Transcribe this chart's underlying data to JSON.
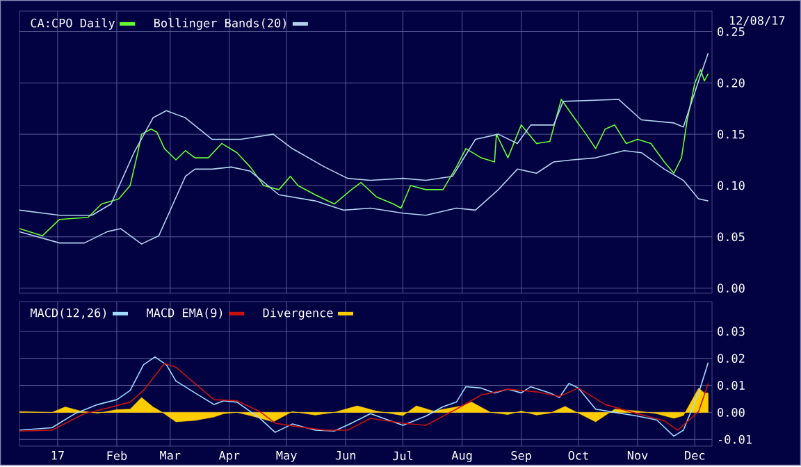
{
  "chart_data": [
    {
      "type": "line",
      "annotations": [
        "12/08/17"
      ],
      "legend": "top left",
      "grid": true,
      "tick_labels": "y",
      "xlim": [
        "2016-12-12",
        "2017-12-10"
      ],
      "ylim": [
        -0.005,
        0.27
      ],
      "xticks": [
        {
          "value": "2017-01-01",
          "label": null
        },
        {
          "value": "2017-02-01",
          "label": null
        },
        {
          "value": "2017-03-01",
          "label": null
        },
        {
          "value": "2017-04-01",
          "label": null
        },
        {
          "value": "2017-05-01",
          "label": null
        },
        {
          "value": "2017-06-01",
          "label": null
        },
        {
          "value": "2017-07-01",
          "label": null
        },
        {
          "value": "2017-08-01",
          "label": null
        },
        {
          "value": "2017-09-01",
          "label": null
        },
        {
          "value": "2017-10-01",
          "label": null
        },
        {
          "value": "2017-11-01",
          "label": null
        },
        {
          "value": "2017-12-01",
          "label": null
        }
      ],
      "yticks": [
        {
          "value": 0,
          "label": "0.00"
        },
        {
          "value": 0.05,
          "label": "0.05"
        },
        {
          "value": 0.1,
          "label": "0.10"
        },
        {
          "value": 0.15,
          "label": "0.15"
        },
        {
          "value": 0.2,
          "label": "0.20"
        },
        {
          "value": 0.25,
          "label": "0.25"
        }
      ],
      "series": [
        {
          "name": "CA:CPO Daily",
          "color": "#66ff33",
          "x": [
            "2016-12-12",
            "2016-12-24",
            "2017-01-02",
            "2017-01-17",
            "2017-01-24",
            "2017-02-02",
            "2017-02-08",
            "2017-02-12",
            "2017-02-14",
            "2017-02-19",
            "2017-02-22",
            "2017-02-26",
            "2017-03-04",
            "2017-03-09",
            "2017-03-14",
            "2017-03-21",
            "2017-03-28",
            "2017-04-05",
            "2017-04-12",
            "2017-04-19",
            "2017-04-27",
            "2017-05-03",
            "2017-05-07",
            "2017-05-16",
            "2017-05-26",
            "2017-06-04",
            "2017-06-09",
            "2017-06-17",
            "2017-06-26",
            "2017-06-30",
            "2017-07-05",
            "2017-07-13",
            "2017-07-22",
            "2017-07-29",
            "2017-08-03",
            "2017-08-11",
            "2017-08-18",
            "2017-08-19",
            "2017-08-25",
            "2017-09-01",
            "2017-09-09",
            "2017-09-16",
            "2017-09-22",
            "2017-09-28",
            "2017-10-05",
            "2017-10-10",
            "2017-10-15",
            "2017-10-20",
            "2017-10-26",
            "2017-11-01",
            "2017-11-08",
            "2017-11-15",
            "2017-11-20",
            "2017-11-24",
            "2017-11-27",
            "2017-12-01",
            "2017-12-04",
            "2017-12-06",
            "2017-12-08"
          ],
          "values": [
            0.058,
            0.051,
            0.067,
            0.069,
            0.082,
            0.087,
            0.1,
            0.132,
            0.15,
            0.155,
            0.152,
            0.136,
            0.125,
            0.134,
            0.127,
            0.127,
            0.141,
            0.132,
            0.118,
            0.1,
            0.096,
            0.109,
            0.1,
            0.091,
            0.082,
            0.096,
            0.103,
            0.089,
            0.082,
            0.078,
            0.1,
            0.096,
            0.096,
            0.118,
            0.136,
            0.127,
            0.123,
            0.15,
            0.127,
            0.159,
            0.141,
            0.143,
            0.184,
            0.168,
            0.15,
            0.136,
            0.155,
            0.159,
            0.141,
            0.145,
            0.141,
            0.123,
            0.112,
            0.127,
            0.164,
            0.2,
            0.213,
            0.202,
            0.209
          ]
        },
        {
          "name": "Bollinger Bands(20)",
          "color": "#b4d2f0",
          "x": [
            "2016-12-12",
            "2017-01-02",
            "2017-01-19",
            "2017-01-29",
            "2017-02-10",
            "2017-02-20",
            "2017-02-27",
            "2017-03-09",
            "2017-03-23",
            "2017-04-07",
            "2017-04-24",
            "2017-05-04",
            "2017-05-21",
            "2017-06-02",
            "2017-06-14",
            "2017-07-01",
            "2017-07-13",
            "2017-07-27",
            "2017-08-08",
            "2017-08-20",
            "2017-08-30",
            "2017-09-06",
            "2017-09-18",
            "2017-09-23",
            "2017-10-22",
            "2017-11-03",
            "2017-11-20",
            "2017-11-25",
            "2017-12-03",
            "2017-12-08"
          ],
          "values": [
            0.076,
            0.071,
            0.071,
            0.082,
            0.132,
            0.166,
            0.173,
            0.166,
            0.145,
            0.145,
            0.15,
            0.136,
            0.118,
            0.107,
            0.105,
            0.107,
            0.105,
            0.109,
            0.145,
            0.15,
            0.141,
            0.159,
            0.159,
            0.182,
            0.184,
            0.164,
            0.161,
            0.157,
            0.202,
            0.229
          ]
        },
        {
          "color": "#b4d2f0",
          "x": [
            "2016-12-12",
            "2017-01-02",
            "2017-01-15",
            "2017-01-27",
            "2017-02-03",
            "2017-02-14",
            "2017-02-23",
            "2017-03-09",
            "2017-03-14",
            "2017-03-23",
            "2017-04-02",
            "2017-04-12",
            "2017-04-27",
            "2017-05-16",
            "2017-05-31",
            "2017-06-14",
            "2017-07-01",
            "2017-07-13",
            "2017-07-29",
            "2017-08-08",
            "2017-08-20",
            "2017-08-30",
            "2017-09-09",
            "2017-09-18",
            "2017-09-28",
            "2017-10-10",
            "2017-10-25",
            "2017-11-03",
            "2017-11-15",
            "2017-11-25",
            "2017-12-03",
            "2017-12-08"
          ],
          "values": [
            0.055,
            0.044,
            0.044,
            0.055,
            0.058,
            0.043,
            0.051,
            0.109,
            0.116,
            0.116,
            0.118,
            0.114,
            0.091,
            0.085,
            0.076,
            0.078,
            0.073,
            0.071,
            0.078,
            0.076,
            0.096,
            0.116,
            0.112,
            0.123,
            0.125,
            0.127,
            0.134,
            0.132,
            0.116,
            0.105,
            0.087,
            0.085
          ]
        }
      ]
    },
    {
      "type": "line",
      "legend": "top left",
      "grid": true,
      "xlim": [
        "2016-12-12",
        "2017-12-10"
      ],
      "ylim": [
        -0.0125,
        0.041
      ],
      "xticks": [
        {
          "value": "2017-01-01",
          "label": "17"
        },
        {
          "value": "2017-02-01",
          "label": "Feb"
        },
        {
          "value": "2017-03-01",
          "label": "Mar"
        },
        {
          "value": "2017-04-01",
          "label": "Apr"
        },
        {
          "value": "2017-05-01",
          "label": "May"
        },
        {
          "value": "2017-06-01",
          "label": "Jun"
        },
        {
          "value": "2017-07-01",
          "label": "Jul"
        },
        {
          "value": "2017-08-01",
          "label": "Aug"
        },
        {
          "value": "2017-09-01",
          "label": "Sep"
        },
        {
          "value": "2017-10-01",
          "label": "Oct"
        },
        {
          "value": "2017-11-01",
          "label": "Nov"
        },
        {
          "value": "2017-12-01",
          "label": "Dec"
        }
      ],
      "yticks": [
        {
          "value": -0.01,
          "label": "-0.01"
        },
        {
          "value": 0,
          "label": "0.00"
        },
        {
          "value": 0.01,
          "label": "0.01"
        },
        {
          "value": 0.02,
          "label": "0.02"
        },
        {
          "value": 0.03,
          "label": "0.03"
        }
      ],
      "series": [
        {
          "name": "MACD(12,26)",
          "color": "#9fdcff",
          "x": [
            "2016-12-12",
            "2016-12-29",
            "2017-01-10",
            "2017-01-22",
            "2017-02-01",
            "2017-02-08",
            "2017-02-15",
            "2017-02-21",
            "2017-02-27",
            "2017-03-04",
            "2017-03-14",
            "2017-03-24",
            "2017-03-29",
            "2017-04-05",
            "2017-04-17",
            "2017-04-25",
            "2017-05-04",
            "2017-05-16",
            "2017-05-26",
            "2017-06-04",
            "2017-06-14",
            "2017-07-01",
            "2017-07-13",
            "2017-07-22",
            "2017-07-29",
            "2017-08-03",
            "2017-08-11",
            "2017-08-18",
            "2017-08-25",
            "2017-09-01",
            "2017-09-06",
            "2017-09-16",
            "2017-09-21",
            "2017-09-26",
            "2017-10-01",
            "2017-10-10",
            "2017-10-20",
            "2017-11-01",
            "2017-11-11",
            "2017-11-20",
            "2017-11-25",
            "2017-12-03",
            "2017-12-08"
          ],
          "values": [
            -0.0066,
            -0.0057,
            -0.0005,
            0.0029,
            0.0047,
            0.0081,
            0.0176,
            0.0205,
            0.0176,
            0.0116,
            0.0072,
            0.0029,
            0.0043,
            0.0038,
            -0.0022,
            -0.0074,
            -0.0043,
            -0.0066,
            -0.0069,
            -0.004,
            -0.0005,
            -0.0048,
            -0.0014,
            0.0021,
            0.0038,
            0.0095,
            0.009,
            0.0072,
            0.0086,
            0.0072,
            0.0095,
            0.0072,
            0.0055,
            0.0107,
            0.009,
            0.0012,
            0.0,
            -0.0014,
            -0.0028,
            -0.0088,
            -0.0066,
            0.0072,
            0.0184
          ]
        },
        {
          "name": "MACD EMA(9)",
          "color": "#cc1111",
          "x": [
            "2016-12-12",
            "2016-12-29",
            "2017-01-15",
            "2017-01-27",
            "2017-02-08",
            "2017-02-15",
            "2017-02-26",
            "2017-03-04",
            "2017-03-14",
            "2017-03-24",
            "2017-04-05",
            "2017-04-17",
            "2017-04-25",
            "2017-05-06",
            "2017-05-21",
            "2017-06-02",
            "2017-06-14",
            "2017-07-01",
            "2017-07-13",
            "2017-07-29",
            "2017-08-11",
            "2017-08-25",
            "2017-09-09",
            "2017-09-21",
            "2017-10-01",
            "2017-10-15",
            "2017-11-01",
            "2017-11-15",
            "2017-11-22",
            "2017-12-03",
            "2017-12-08"
          ],
          "values": [
            -0.0069,
            -0.0066,
            -0.0005,
            0.0016,
            0.0038,
            0.0081,
            0.0181,
            0.0167,
            0.0107,
            0.0047,
            0.0043,
            0.0003,
            -0.004,
            -0.0052,
            -0.0066,
            -0.0066,
            -0.0022,
            -0.004,
            -0.0048,
            0.0012,
            0.0064,
            0.0086,
            0.0076,
            0.0059,
            0.009,
            0.0029,
            -0.0005,
            -0.0031,
            -0.0066,
            0.0003,
            0.0107
          ]
        },
        {
          "name": "Divergence",
          "type": "area",
          "color": "#ffcc00",
          "x": [
            "2016-12-12",
            "2016-12-29",
            "2017-01-05",
            "2017-01-13",
            "2017-01-22",
            "2017-02-01",
            "2017-02-08",
            "2017-02-14",
            "2017-02-20",
            "2017-02-25",
            "2017-03-04",
            "2017-03-14",
            "2017-03-24",
            "2017-03-29",
            "2017-04-05",
            "2017-04-12",
            "2017-04-24",
            "2017-05-04",
            "2017-05-16",
            "2017-05-26",
            "2017-06-07",
            "2017-06-17",
            "2017-07-01",
            "2017-07-08",
            "2017-07-17",
            "2017-08-01",
            "2017-08-06",
            "2017-08-16",
            "2017-08-25",
            "2017-09-01",
            "2017-09-09",
            "2017-09-16",
            "2017-09-24",
            "2017-10-01",
            "2017-10-10",
            "2017-10-20",
            "2017-11-01",
            "2017-11-11",
            "2017-11-20",
            "2017-11-25",
            "2017-12-03",
            "2017-12-06",
            "2017-12-08"
          ],
          "values": [
            0.0003,
            0.0,
            0.002,
            0.0005,
            -0.0003,
            0.001,
            0.0012,
            0.0055,
            0.002,
            0.0,
            -0.0035,
            -0.003,
            -0.0017,
            -0.0005,
            0.0,
            -0.0012,
            -0.0035,
            0.0003,
            -0.001,
            0.0,
            0.0024,
            0.0005,
            -0.0012,
            0.0024,
            0.0005,
            0.0024,
            0.0038,
            0.0,
            -0.0008,
            0.0005,
            -0.001,
            -0.0003,
            0.0022,
            -0.0003,
            -0.0035,
            0.0012,
            0.0005,
            -0.0005,
            -0.0022,
            -0.0012,
            0.009,
            0.0072,
            0.0072
          ]
        }
      ]
    }
  ]
}
